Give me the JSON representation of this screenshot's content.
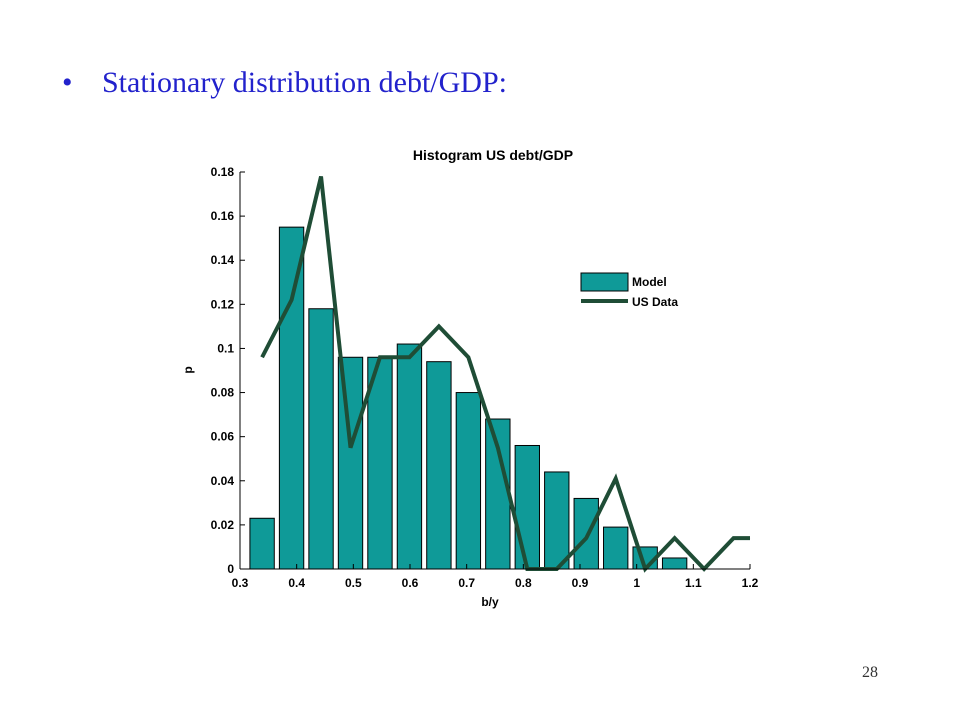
{
  "slide": {
    "bullet": "•",
    "heading": "Stationary distribution debt/GDP:",
    "page_number": "28"
  },
  "colors": {
    "heading": "#2222cc",
    "bar_fill": "#0f9a98",
    "line": "#1f4d36"
  },
  "chart_data": {
    "type": "bar",
    "title": "Histogram US debt/GDP",
    "xlabel": "b/y",
    "ylabel": "p",
    "xlim": [
      0.3,
      1.2
    ],
    "ylim": [
      0,
      0.18
    ],
    "xticks": [
      0.3,
      0.4,
      0.5,
      0.6,
      0.7,
      0.8,
      0.9,
      1,
      1.1,
      1.2
    ],
    "xtick_labels": [
      "0.3",
      "0.4",
      "0.5",
      "0.6",
      "0.7",
      "0.8",
      "0.9",
      "1",
      "1.1",
      "1.2"
    ],
    "yticks": [
      0,
      0.02,
      0.04,
      0.06,
      0.08,
      0.1,
      0.12,
      0.14,
      0.16,
      0.18
    ],
    "ytick_labels": [
      "0",
      "0.02",
      "0.04",
      "0.06",
      "0.08",
      "0.1",
      "0.12",
      "0.14",
      "0.16",
      "0.18"
    ],
    "legend_position": "right",
    "grid": false,
    "series": [
      {
        "name": "Model",
        "kind": "bar",
        "x": [
          0.339,
          0.391,
          0.443,
          0.495,
          0.547,
          0.599,
          0.651,
          0.703,
          0.755,
          0.807,
          0.859,
          0.911,
          0.963,
          1.015,
          1.067
        ],
        "values": [
          0.023,
          0.155,
          0.118,
          0.096,
          0.096,
          0.102,
          0.094,
          0.08,
          0.068,
          0.056,
          0.044,
          0.032,
          0.019,
          0.01,
          0.005
        ],
        "bar_width": 0.043
      },
      {
        "name": "US Data",
        "kind": "line",
        "x": [
          0.339,
          0.391,
          0.443,
          0.495,
          0.547,
          0.599,
          0.651,
          0.703,
          0.755,
          0.807,
          0.859,
          0.911,
          0.963,
          1.015,
          1.067,
          1.119,
          1.171,
          1.2
        ],
        "values": [
          0.096,
          0.122,
          0.178,
          0.055,
          0.096,
          0.096,
          0.11,
          0.096,
          0.055,
          0.0,
          0.0,
          0.014,
          0.041,
          0.0,
          0.014,
          0.0,
          0.014,
          0.014
        ]
      }
    ]
  }
}
